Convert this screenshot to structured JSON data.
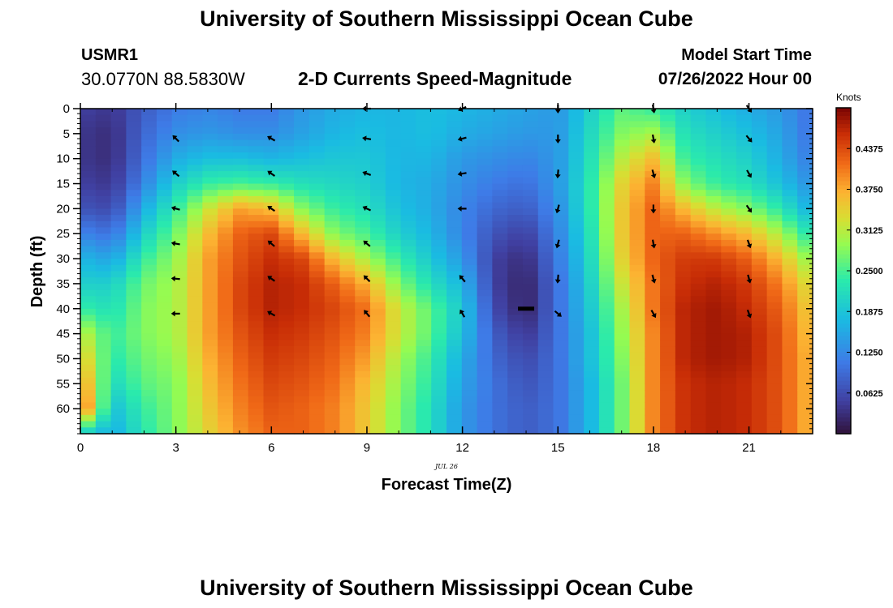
{
  "page": {
    "main_title": "University of Southern Mississippi Ocean Cube",
    "footer_title": "University of Southern Mississippi Ocean Cube",
    "station_id": "USMR1",
    "station_coords": "30.0770N  88.5830W",
    "model_start_label": "Model Start Time",
    "model_start_value": "07/26/2022 Hour 00"
  },
  "chart_data": {
    "type": "heatmap",
    "title": "2-D Currents Speed-Magnitude",
    "xlabel": "Forecast Time(Z)",
    "ylabel": "Depth (ft)",
    "date_label": "JUL 26",
    "colorbar_label": "Knots",
    "xlim": [
      0,
      23
    ],
    "ylim": [
      0,
      65
    ],
    "x_ticks": [
      0,
      3,
      6,
      9,
      12,
      15,
      18,
      21
    ],
    "x_tick_labels": [
      "0",
      "3",
      "6",
      "9",
      "12",
      "15",
      "18",
      "21"
    ],
    "y_ticks": [
      0,
      5,
      10,
      15,
      20,
      25,
      30,
      35,
      40,
      45,
      50,
      55,
      60
    ],
    "y_tick_labels": [
      "0",
      "5",
      "10",
      "15",
      "20",
      "25",
      "30",
      "35",
      "40",
      "45",
      "50",
      "55",
      "60"
    ],
    "colorbar_ticks": [
      0.0625,
      0.125,
      0.1875,
      0.25,
      0.3125,
      0.375,
      0.4375
    ],
    "colorbar_tick_labels": [
      "0.0625",
      "0.1250",
      "0.1875",
      "0.2500",
      "0.3125",
      "0.3750",
      "0.4375"
    ],
    "colorbar_range": [
      0.0,
      0.5
    ],
    "hours": [
      0,
      1,
      2,
      3,
      4,
      5,
      6,
      7,
      8,
      9,
      10,
      11,
      12,
      13,
      14,
      15,
      16,
      17,
      18,
      19,
      20,
      21,
      22,
      23
    ],
    "depths": [
      0,
      5,
      10,
      15,
      20,
      25,
      30,
      35,
      40,
      45,
      50,
      55,
      60,
      65
    ],
    "speed_knots": [
      [
        0.05,
        0.04,
        0.04,
        0.05,
        0.07,
        0.12,
        0.17,
        0.2,
        0.24,
        0.32,
        0.36,
        0.4,
        0.44,
        0.2
      ],
      [
        0.04,
        0.03,
        0.03,
        0.04,
        0.06,
        0.1,
        0.15,
        0.2,
        0.22,
        0.24,
        0.23,
        0.21,
        0.18,
        0.16
      ],
      [
        0.08,
        0.09,
        0.1,
        0.12,
        0.16,
        0.2,
        0.24,
        0.27,
        0.28,
        0.28,
        0.27,
        0.26,
        0.24,
        0.23
      ],
      [
        0.11,
        0.13,
        0.16,
        0.2,
        0.24,
        0.27,
        0.29,
        0.3,
        0.3,
        0.3,
        0.29,
        0.28,
        0.28,
        0.28
      ],
      [
        0.12,
        0.14,
        0.18,
        0.24,
        0.32,
        0.36,
        0.38,
        0.38,
        0.38,
        0.38,
        0.37,
        0.36,
        0.35,
        0.34
      ],
      [
        0.11,
        0.13,
        0.18,
        0.25,
        0.38,
        0.42,
        0.43,
        0.44,
        0.44,
        0.43,
        0.42,
        0.41,
        0.4,
        0.39
      ],
      [
        0.11,
        0.13,
        0.17,
        0.24,
        0.36,
        0.44,
        0.46,
        0.47,
        0.47,
        0.46,
        0.45,
        0.44,
        0.43,
        0.42
      ],
      [
        0.14,
        0.15,
        0.18,
        0.22,
        0.28,
        0.36,
        0.44,
        0.46,
        0.46,
        0.45,
        0.44,
        0.43,
        0.42,
        0.42
      ],
      [
        0.16,
        0.17,
        0.19,
        0.21,
        0.24,
        0.28,
        0.36,
        0.42,
        0.44,
        0.43,
        0.42,
        0.41,
        0.4,
        0.4
      ],
      [
        0.17,
        0.18,
        0.19,
        0.2,
        0.22,
        0.25,
        0.3,
        0.37,
        0.41,
        0.4,
        0.38,
        0.36,
        0.35,
        0.35
      ],
      [
        0.17,
        0.17,
        0.17,
        0.17,
        0.18,
        0.2,
        0.24,
        0.28,
        0.32,
        0.32,
        0.3,
        0.29,
        0.28,
        0.28
      ],
      [
        0.18,
        0.18,
        0.17,
        0.16,
        0.16,
        0.17,
        0.19,
        0.22,
        0.26,
        0.26,
        0.24,
        0.23,
        0.22,
        0.22
      ],
      [
        0.17,
        0.16,
        0.14,
        0.13,
        0.12,
        0.12,
        0.14,
        0.17,
        0.19,
        0.18,
        0.16,
        0.15,
        0.14,
        0.14
      ],
      [
        0.16,
        0.15,
        0.13,
        0.11,
        0.09,
        0.07,
        0.05,
        0.05,
        0.06,
        0.08,
        0.09,
        0.1,
        0.1,
        0.1
      ],
      [
        0.15,
        0.14,
        0.12,
        0.1,
        0.08,
        0.05,
        0.03,
        0.02,
        0.02,
        0.04,
        0.06,
        0.07,
        0.08,
        0.08
      ],
      [
        0.14,
        0.14,
        0.14,
        0.14,
        0.13,
        0.12,
        0.11,
        0.1,
        0.1,
        0.1,
        0.1,
        0.1,
        0.1,
        0.1
      ],
      [
        0.2,
        0.21,
        0.22,
        0.23,
        0.23,
        0.22,
        0.21,
        0.2,
        0.19,
        0.18,
        0.18,
        0.17,
        0.17,
        0.17
      ],
      [
        0.26,
        0.28,
        0.31,
        0.34,
        0.35,
        0.35,
        0.34,
        0.32,
        0.3,
        0.29,
        0.28,
        0.27,
        0.27,
        0.27
      ],
      [
        0.24,
        0.3,
        0.36,
        0.4,
        0.42,
        0.42,
        0.42,
        0.41,
        0.41,
        0.4,
        0.4,
        0.4,
        0.4,
        0.4
      ],
      [
        0.2,
        0.22,
        0.24,
        0.28,
        0.36,
        0.42,
        0.45,
        0.46,
        0.47,
        0.47,
        0.47,
        0.46,
        0.46,
        0.46
      ],
      [
        0.18,
        0.2,
        0.22,
        0.24,
        0.31,
        0.39,
        0.45,
        0.47,
        0.48,
        0.48,
        0.48,
        0.47,
        0.47,
        0.47
      ],
      [
        0.16,
        0.18,
        0.2,
        0.22,
        0.28,
        0.36,
        0.42,
        0.45,
        0.46,
        0.47,
        0.47,
        0.46,
        0.46,
        0.46
      ],
      [
        0.14,
        0.15,
        0.16,
        0.18,
        0.23,
        0.3,
        0.36,
        0.4,
        0.42,
        0.43,
        0.43,
        0.43,
        0.43,
        0.43
      ],
      [
        0.1,
        0.1,
        0.11,
        0.13,
        0.16,
        0.22,
        0.28,
        0.32,
        0.34,
        0.35,
        0.36,
        0.36,
        0.36,
        0.36
      ]
    ],
    "vectors": [
      {
        "hour": 3,
        "arrows": [
          {
            "depth": 6,
            "angle_deg": 135
          },
          {
            "depth": 13,
            "angle_deg": 140
          },
          {
            "depth": 20,
            "angle_deg": 165
          },
          {
            "depth": 27,
            "angle_deg": 170
          },
          {
            "depth": 34,
            "angle_deg": 175
          },
          {
            "depth": 41,
            "angle_deg": 180
          }
        ]
      },
      {
        "hour": 6,
        "arrows": [
          {
            "depth": 6,
            "angle_deg": 150
          },
          {
            "depth": 13,
            "angle_deg": 145
          },
          {
            "depth": 20,
            "angle_deg": 145
          },
          {
            "depth": 27,
            "angle_deg": 140
          },
          {
            "depth": 34,
            "angle_deg": 145
          },
          {
            "depth": 41,
            "angle_deg": 150
          }
        ]
      },
      {
        "hour": 9,
        "arrows": [
          {
            "depth": 0,
            "angle_deg": 180
          },
          {
            "depth": 6,
            "angle_deg": 170
          },
          {
            "depth": 13,
            "angle_deg": 160
          },
          {
            "depth": 20,
            "angle_deg": 155
          },
          {
            "depth": 27,
            "angle_deg": 140
          },
          {
            "depth": 34,
            "angle_deg": 135
          },
          {
            "depth": 41,
            "angle_deg": 130
          }
        ]
      },
      {
        "hour": 12,
        "arrows": [
          {
            "depth": 0,
            "angle_deg": 205
          },
          {
            "depth": 6,
            "angle_deg": 195
          },
          {
            "depth": 13,
            "angle_deg": 190
          },
          {
            "depth": 20,
            "angle_deg": 180
          },
          {
            "depth": 34,
            "angle_deg": 130
          },
          {
            "depth": 41,
            "angle_deg": 120
          }
        ]
      },
      {
        "hour": 15,
        "arrows": [
          {
            "depth": 0,
            "angle_deg": 270
          },
          {
            "depth": 6,
            "angle_deg": 270
          },
          {
            "depth": 13,
            "angle_deg": 265
          },
          {
            "depth": 20,
            "angle_deg": 255
          },
          {
            "depth": 27,
            "angle_deg": 255
          },
          {
            "depth": 34,
            "angle_deg": 265
          },
          {
            "depth": 41,
            "angle_deg": 320
          }
        ]
      },
      {
        "hour": 18,
        "arrows": [
          {
            "depth": 0,
            "angle_deg": 280
          },
          {
            "depth": 6,
            "angle_deg": 280
          },
          {
            "depth": 13,
            "angle_deg": 285
          },
          {
            "depth": 20,
            "angle_deg": 270
          },
          {
            "depth": 27,
            "angle_deg": 280
          },
          {
            "depth": 34,
            "angle_deg": 285
          },
          {
            "depth": 41,
            "angle_deg": 300
          }
        ]
      },
      {
        "hour": 21,
        "arrows": [
          {
            "depth": 0,
            "angle_deg": 305
          },
          {
            "depth": 6,
            "angle_deg": 310
          },
          {
            "depth": 13,
            "angle_deg": 300
          },
          {
            "depth": 20,
            "angle_deg": 305
          },
          {
            "depth": 27,
            "angle_deg": 290
          },
          {
            "depth": 34,
            "angle_deg": 285
          },
          {
            "depth": 41,
            "angle_deg": 290
          }
        ]
      }
    ]
  }
}
